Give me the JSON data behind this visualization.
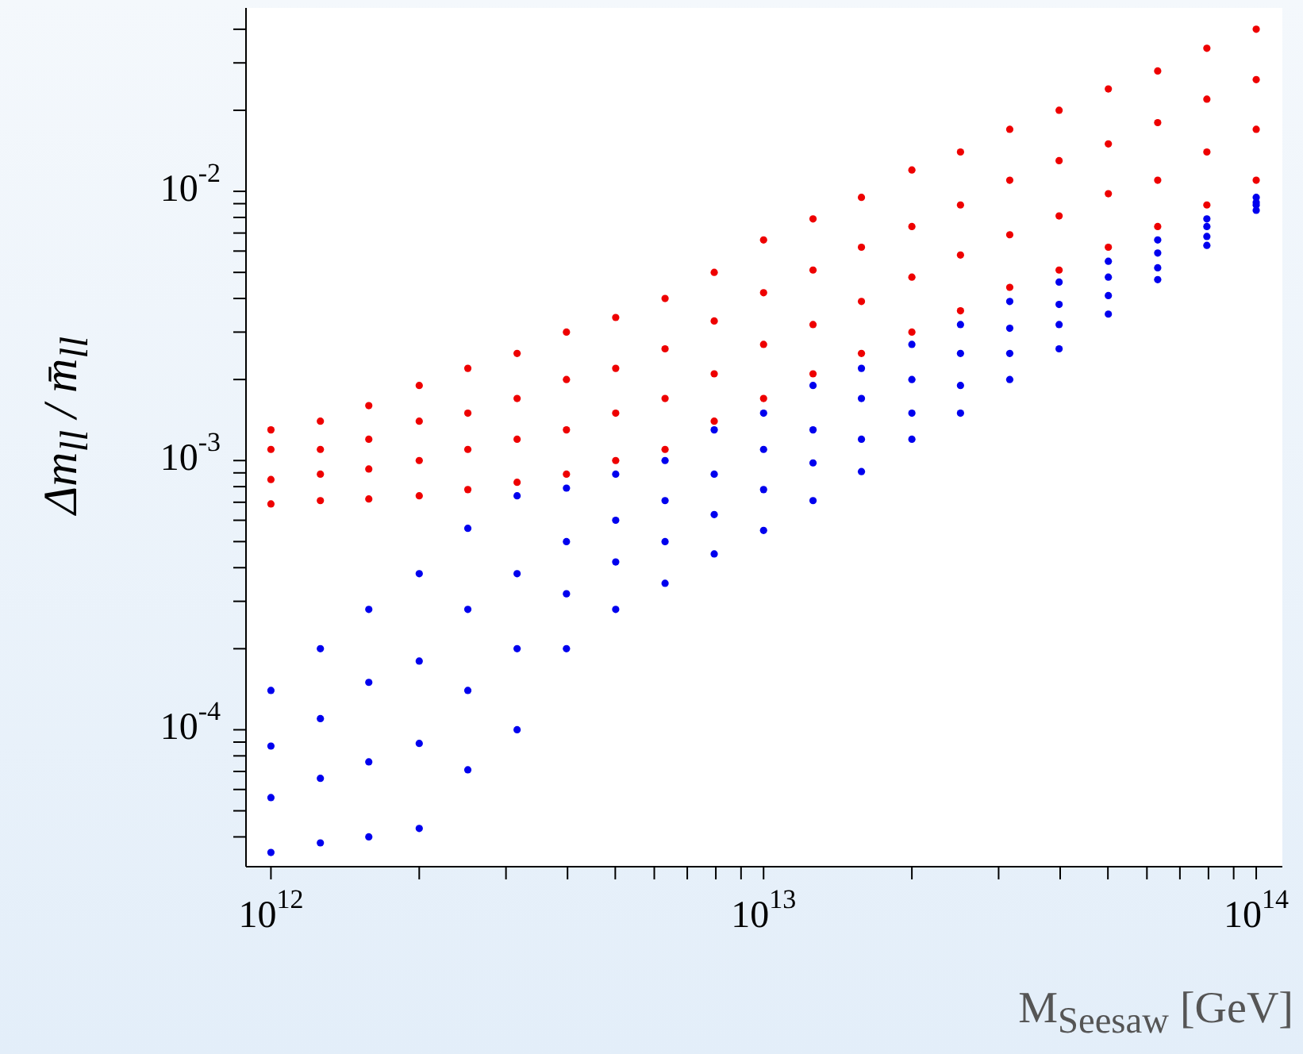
{
  "chart_data": {
    "type": "scatter",
    "xlabel": "M$_{Seesaw}$ [GeV]",
    "ylabel": "Δm$_{ll}$ / m̄$_{ll}$",
    "log": "xy",
    "marker": "circle",
    "xlim": [
      890000000000.0,
      113000000000000.0
    ],
    "ylim": [
      3.1e-05,
      0.048
    ],
    "xticks": [
      {
        "value": 1000000000000.0,
        "label": "10$^{12}$"
      },
      {
        "value": 2000000000000.0,
        "label": null
      },
      {
        "value": 3000000000000.0,
        "label": null
      },
      {
        "value": 4000000000000.0,
        "label": null
      },
      {
        "value": 5000000000000.0,
        "label": null
      },
      {
        "value": 6000000000000.0,
        "label": null
      },
      {
        "value": 7000000000000.0,
        "label": null
      },
      {
        "value": 8000000000000.0,
        "label": null
      },
      {
        "value": 9000000000000.0,
        "label": null
      },
      {
        "value": 10000000000000.0,
        "label": "10$^{13}$"
      },
      {
        "value": 20000000000000.0,
        "label": null
      },
      {
        "value": 30000000000000.0,
        "label": null
      },
      {
        "value": 40000000000000.0,
        "label": null
      },
      {
        "value": 50000000000000.0,
        "label": null
      },
      {
        "value": 60000000000000.0,
        "label": null
      },
      {
        "value": 70000000000000.0,
        "label": null
      },
      {
        "value": 80000000000000.0,
        "label": null
      },
      {
        "value": 90000000000000.0,
        "label": null
      },
      {
        "value": 100000000000000.0,
        "label": "10$^{14}$"
      }
    ],
    "yticks": [
      {
        "value": 4e-05,
        "label": null
      },
      {
        "value": 5e-05,
        "label": null
      },
      {
        "value": 6e-05,
        "label": null
      },
      {
        "value": 7e-05,
        "label": null
      },
      {
        "value": 8e-05,
        "label": null
      },
      {
        "value": 9e-05,
        "label": null
      },
      {
        "value": 0.0001,
        "label": "10$^{-4}$"
      },
      {
        "value": 0.0002,
        "label": null
      },
      {
        "value": 0.0003,
        "label": null
      },
      {
        "value": 0.0004,
        "label": null
      },
      {
        "value": 0.0005,
        "label": null
      },
      {
        "value": 0.0006,
        "label": null
      },
      {
        "value": 0.0007,
        "label": null
      },
      {
        "value": 0.0008,
        "label": null
      },
      {
        "value": 0.0009,
        "label": null
      },
      {
        "value": 0.001,
        "label": "10$^{-3}$"
      },
      {
        "value": 0.002,
        "label": null
      },
      {
        "value": 0.003,
        "label": null
      },
      {
        "value": 0.004,
        "label": null
      },
      {
        "value": 0.005,
        "label": null
      },
      {
        "value": 0.006,
        "label": null
      },
      {
        "value": 0.007,
        "label": null
      },
      {
        "value": 0.008,
        "label": null
      },
      {
        "value": 0.009,
        "label": null
      },
      {
        "value": 0.01,
        "label": "10$^{-2}$"
      },
      {
        "value": 0.02,
        "label": null
      },
      {
        "value": 0.03,
        "label": null
      },
      {
        "value": 0.04,
        "label": null
      }
    ],
    "x": [
      1000000000000.0,
      1000000000000.0,
      1000000000000.0,
      1000000000000.0,
      1260000000000.0,
      1260000000000.0,
      1260000000000.0,
      1260000000000.0,
      1580000000000.0,
      1580000000000.0,
      1580000000000.0,
      1580000000000.0,
      2000000000000.0,
      2000000000000.0,
      2000000000000.0,
      2000000000000.0,
      2510000000000.0,
      2510000000000.0,
      2510000000000.0,
      2510000000000.0,
      3160000000000.0,
      3160000000000.0,
      3160000000000.0,
      3160000000000.0,
      3980000000000.0,
      3980000000000.0,
      3980000000000.0,
      3980000000000.0,
      5010000000000.0,
      5010000000000.0,
      5010000000000.0,
      5010000000000.0,
      6310000000000.0,
      6310000000000.0,
      6310000000000.0,
      6310000000000.0,
      7940000000000.0,
      7940000000000.0,
      7940000000000.0,
      7940000000000.0,
      10000000000000.0,
      10000000000000.0,
      10000000000000.0,
      10000000000000.0,
      12600000000000.0,
      12600000000000.0,
      12600000000000.0,
      12600000000000.0,
      15800000000000.0,
      15800000000000.0,
      15800000000000.0,
      15800000000000.0,
      20000000000000.0,
      20000000000000.0,
      20000000000000.0,
      20000000000000.0,
      25100000000000.0,
      25100000000000.0,
      25100000000000.0,
      25100000000000.0,
      31600000000000.0,
      31600000000000.0,
      31600000000000.0,
      31600000000000.0,
      39800000000000.0,
      39800000000000.0,
      39800000000000.0,
      39800000000000.0,
      50100000000000.0,
      50100000000000.0,
      50100000000000.0,
      50100000000000.0,
      63100000000000.0,
      63100000000000.0,
      63100000000000.0,
      63100000000000.0,
      79400000000000.0,
      79400000000000.0,
      79400000000000.0,
      79400000000000.0,
      100000000000000.0,
      100000000000000.0,
      100000000000000.0,
      100000000000000.0
    ],
    "series": [
      {
        "color": "#0000ee",
        "values": [
          0.00014,
          8.7e-05,
          5.6e-05,
          3.5e-05,
          0.0002,
          0.00011,
          6.6e-05,
          3.8e-05,
          0.00028,
          0.00015,
          7.6e-05,
          4e-05,
          0.00038,
          0.00018,
          8.9e-05,
          4.3e-05,
          0.00056,
          0.00028,
          0.00014,
          7.1e-05,
          0.00074,
          0.00038,
          0.0002,
          0.0001,
          0.00079,
          0.0005,
          0.00032,
          0.0002,
          0.00089,
          0.0006,
          0.00042,
          0.00028,
          0.001,
          0.00071,
          0.0005,
          0.00035,
          0.0013,
          0.00089,
          0.00063,
          0.00045,
          0.0015,
          0.0011,
          0.00078,
          0.00055,
          0.0019,
          0.0013,
          0.00098,
          0.00071,
          0.0022,
          0.0017,
          0.0012,
          0.00091,
          0.0027,
          0.002,
          0.0015,
          0.0012,
          0.0032,
          0.0025,
          0.0019,
          0.0015,
          0.0039,
          0.0031,
          0.0025,
          0.002,
          0.0046,
          0.0038,
          0.0032,
          0.0026,
          0.0055,
          0.0048,
          0.0041,
          0.0035,
          0.0066,
          0.0059,
          0.0052,
          0.0047,
          0.0079,
          0.0074,
          0.0068,
          0.0063,
          0.0095,
          0.0091,
          0.0089,
          0.0085
        ]
      },
      {
        "color": "#ee0000",
        "values": [
          0.0013,
          0.0011,
          0.00085,
          0.00069,
          0.0014,
          0.0011,
          0.00089,
          0.00071,
          0.0016,
          0.0012,
          0.00093,
          0.00072,
          0.0019,
          0.0014,
          0.001,
          0.00074,
          0.0022,
          0.0015,
          0.0011,
          0.00078,
          0.0025,
          0.0017,
          0.0012,
          0.00083,
          0.003,
          0.002,
          0.0013,
          0.00089,
          0.0034,
          0.0022,
          0.0015,
          0.001,
          0.004,
          0.0026,
          0.0017,
          0.0011,
          0.005,
          0.0033,
          0.0021,
          0.0014,
          0.0066,
          0.0042,
          0.0027,
          0.0017,
          0.0079,
          0.0051,
          0.0032,
          0.0021,
          0.0095,
          0.0062,
          0.0039,
          0.0025,
          0.012,
          0.0074,
          0.0048,
          0.003,
          0.014,
          0.0089,
          0.0058,
          0.0036,
          0.017,
          0.011,
          0.0069,
          0.0044,
          0.02,
          0.013,
          0.0081,
          0.0051,
          0.024,
          0.015,
          0.0098,
          0.0062,
          0.028,
          0.018,
          0.011,
          0.0074,
          0.034,
          0.022,
          0.014,
          0.0089,
          0.04,
          0.026,
          0.017,
          0.011
        ]
      }
    ]
  }
}
